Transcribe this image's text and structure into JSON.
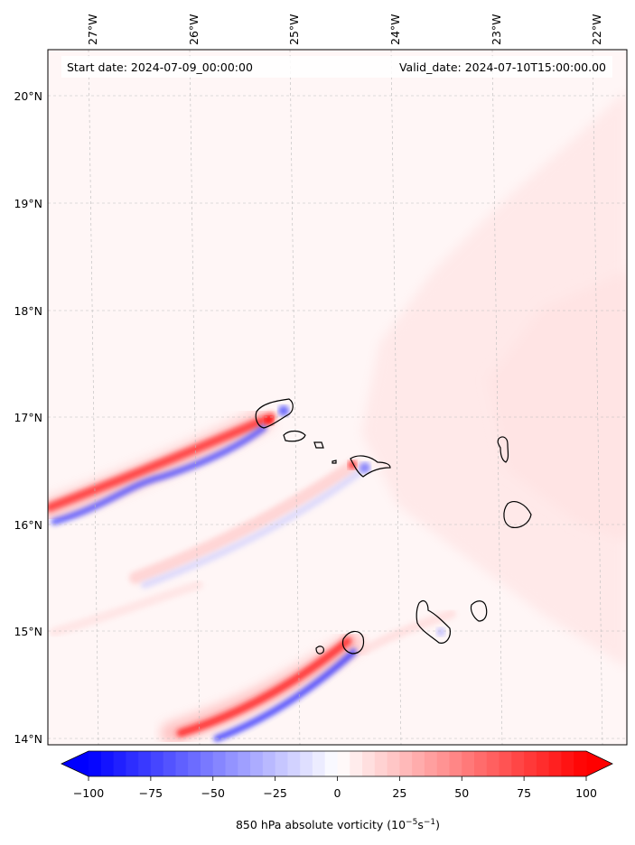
{
  "header": {
    "start_date": "Start date: 2024-07-09_00:00:00",
    "valid_date": "Valid_date: 2024-07-10T15:00:00.00"
  },
  "map": {
    "lon_ticks": [
      "27°W",
      "26°W",
      "25°W",
      "24°W",
      "23°W",
      "22°W"
    ],
    "lat_ticks": [
      "20°N",
      "19°N",
      "18°N",
      "17°N",
      "16°N",
      "15°N",
      "14°N"
    ],
    "lon_range": [
      -27.4,
      -21.7
    ],
    "lat_range": [
      13.95,
      20.45
    ],
    "gridlines": true
  },
  "colorbar": {
    "label": "850 hPa absolute vorticity (10",
    "label_exp1": "−5",
    "label_mid": "s",
    "label_exp2": "−1",
    "label_end": ")",
    "ticks": [
      "−100",
      "−75",
      "−50",
      "−25",
      "0",
      "25",
      "50",
      "75",
      "100"
    ],
    "range": [
      -100,
      100
    ],
    "colormap": "bwr",
    "extend": "both"
  },
  "colors": {
    "min": "#0000ff",
    "mid": "#ffffff",
    "max": "#ff0000",
    "coast": "#000000"
  }
}
